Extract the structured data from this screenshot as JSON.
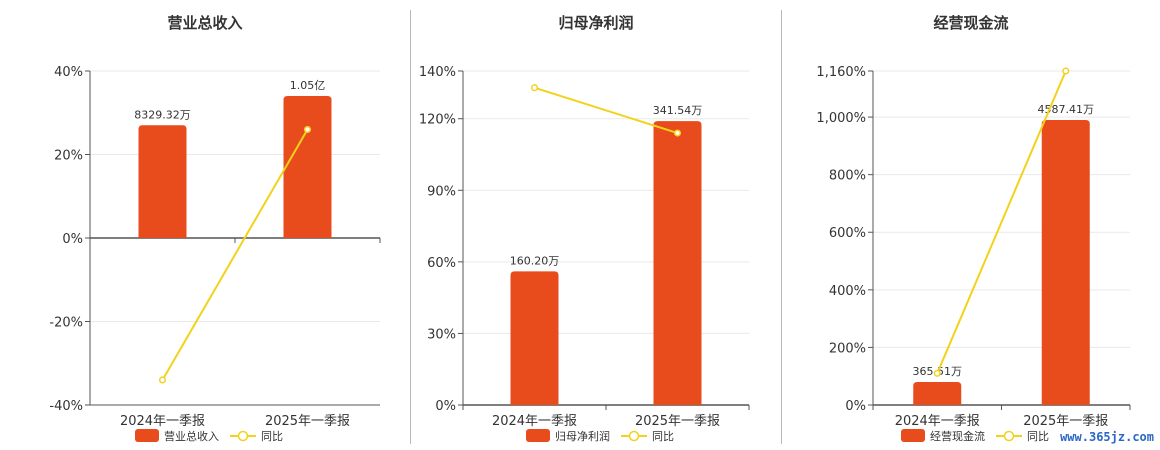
{
  "colors": {
    "bar": "#E84B1C",
    "line": "#F2D21B",
    "axis": "#555555",
    "grid": "#e9e9e9"
  },
  "chart_data": [
    {
      "type": "bar",
      "title": "营业总收入",
      "categories": [
        "2024年一季报",
        "2025年一季报"
      ],
      "series": [
        {
          "name": "营业总收入",
          "type": "bar",
          "values": [
            27,
            34
          ],
          "labels": [
            "8329.32万",
            "1.05亿"
          ]
        },
        {
          "name": "同比",
          "type": "line",
          "values": [
            -34,
            26
          ]
        }
      ],
      "ylim": [
        -40,
        40
      ],
      "yticks": [
        -40,
        -20,
        0,
        20,
        40
      ],
      "ytick_labels": [
        "-40%",
        "-20%",
        "0%",
        "20%",
        "40%"
      ],
      "grid": true,
      "legend": "bottom"
    },
    {
      "type": "bar",
      "title": "归母净利润",
      "categories": [
        "2024年一季报",
        "2025年一季报"
      ],
      "series": [
        {
          "name": "归母净利润",
          "type": "bar",
          "values": [
            56,
            119
          ],
          "labels": [
            "160.20万",
            "341.54万"
          ]
        },
        {
          "name": "同比",
          "type": "line",
          "values": [
            133,
            114
          ]
        }
      ],
      "ylim": [
        0,
        140
      ],
      "yticks": [
        0,
        30,
        60,
        90,
        120,
        140
      ],
      "ytick_labels": [
        "0%",
        "30%",
        "60%",
        "90%",
        "120%",
        "140%"
      ],
      "grid": true,
      "legend": "bottom"
    },
    {
      "type": "bar",
      "title": "经营现金流",
      "categories": [
        "2024年一季报",
        "2025年一季报"
      ],
      "series": [
        {
          "name": "经营现金流",
          "type": "bar",
          "values": [
            80,
            990
          ],
          "labels": [
            "365.51万",
            "4587.41万"
          ]
        },
        {
          "name": "同比",
          "type": "line",
          "values": [
            110,
            1160
          ]
        }
      ],
      "ylim": [
        0,
        1160
      ],
      "yticks": [
        0,
        200,
        400,
        600,
        800,
        1000,
        1160
      ],
      "ytick_labels": [
        "0%",
        "200%",
        "400%",
        "600%",
        "800%",
        "1,000%",
        "1,160%"
      ],
      "grid": true,
      "legend": "bottom"
    }
  ],
  "watermark": "www.365jz.com"
}
